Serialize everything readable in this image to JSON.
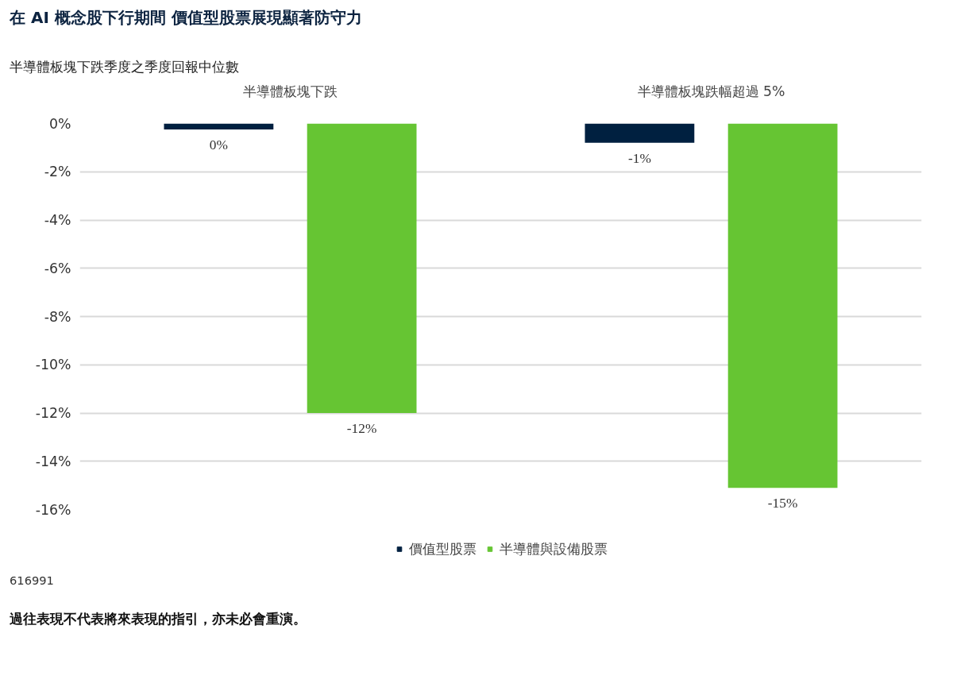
{
  "chart_data": {
    "type": "bar",
    "title": "在 AI 概念股下行期間 價值型股票展現顯著防守力",
    "subtitle": "半導體板塊下跌季度之季度回報中位數",
    "categories": [
      "半導體板塊下跌",
      "半導體板塊跌幅超過 5%"
    ],
    "series": [
      {
        "name": "價值型股票",
        "color": "#002040",
        "values": [
          -0.25,
          -0.8
        ],
        "value_labels": [
          "0%",
          "-1%"
        ]
      },
      {
        "name": "半導體與設備股票",
        "color": "#66c533",
        "values": [
          -12.0,
          -15.1
        ],
        "value_labels": [
          "-12%",
          "-15%"
        ]
      }
    ],
    "ylim": [
      -16,
      0
    ],
    "yticks": [
      {
        "value": 0,
        "label": "0%"
      },
      {
        "value": -2,
        "label": "-2%"
      },
      {
        "value": -4,
        "label": "-4%"
      },
      {
        "value": -6,
        "label": "-6%"
      },
      {
        "value": -8,
        "label": "-8%"
      },
      {
        "value": -10,
        "label": "-10%"
      },
      {
        "value": -12,
        "label": "-12%"
      },
      {
        "value": -14,
        "label": "-14%"
      },
      {
        "value": -16,
        "label": "-16%"
      }
    ],
    "grid": "y",
    "legend": "bottom",
    "annotations": [
      "616991",
      "過往表現不代表將來表現的指引，亦未必會重演。"
    ]
  }
}
